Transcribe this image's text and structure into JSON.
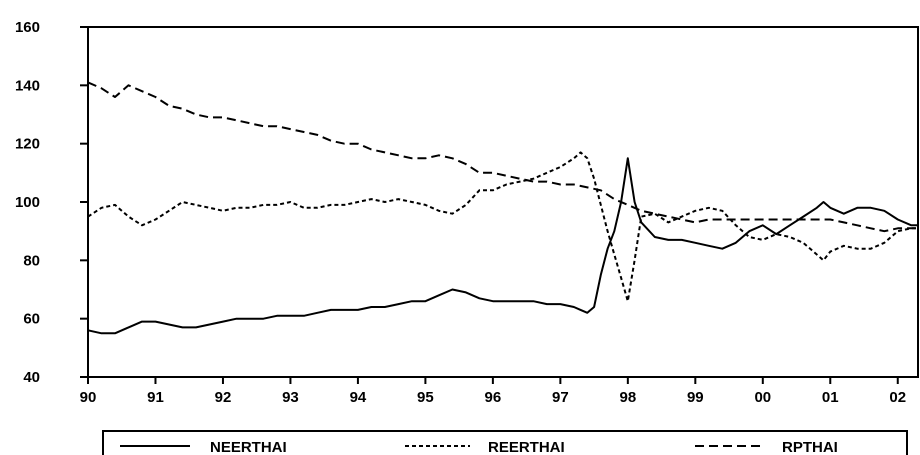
{
  "chart_data": {
    "type": "line",
    "title": "",
    "xlabel": "",
    "ylabel": "",
    "xlim": [
      1990,
      2002.3
    ],
    "ylim": [
      40,
      160
    ],
    "y_ticks": [
      40,
      60,
      80,
      100,
      120,
      140,
      160
    ],
    "x_ticks": [
      {
        "value": 1990,
        "label": "90"
      },
      {
        "value": 1991,
        "label": "91"
      },
      {
        "value": 1992,
        "label": "92"
      },
      {
        "value": 1993,
        "label": "93"
      },
      {
        "value": 1994,
        "label": "94"
      },
      {
        "value": 1995,
        "label": "95"
      },
      {
        "value": 1996,
        "label": "96"
      },
      {
        "value": 1997,
        "label": "97"
      },
      {
        "value": 1998,
        "label": "98"
      },
      {
        "value": 1999,
        "label": "99"
      },
      {
        "value": 2000,
        "label": "00"
      },
      {
        "value": 2001,
        "label": "01"
      },
      {
        "value": 2002,
        "label": "02"
      }
    ],
    "grid": false,
    "legend_position": "bottom",
    "series": [
      {
        "name": "NEERTHAI",
        "style": "solid",
        "color": "#000000",
        "points": [
          [
            1990.0,
            56
          ],
          [
            1990.2,
            55
          ],
          [
            1990.4,
            55
          ],
          [
            1990.6,
            57
          ],
          [
            1990.8,
            59
          ],
          [
            1991.0,
            59
          ],
          [
            1991.2,
            58
          ],
          [
            1991.4,
            57
          ],
          [
            1991.6,
            57
          ],
          [
            1991.8,
            58
          ],
          [
            1992.0,
            59
          ],
          [
            1992.2,
            60
          ],
          [
            1992.4,
            60
          ],
          [
            1992.6,
            60
          ],
          [
            1992.8,
            61
          ],
          [
            1993.0,
            61
          ],
          [
            1993.2,
            61
          ],
          [
            1993.4,
            62
          ],
          [
            1993.6,
            63
          ],
          [
            1993.8,
            63
          ],
          [
            1994.0,
            63
          ],
          [
            1994.2,
            64
          ],
          [
            1994.4,
            64
          ],
          [
            1994.6,
            65
          ],
          [
            1994.8,
            66
          ],
          [
            1995.0,
            66
          ],
          [
            1995.2,
            68
          ],
          [
            1995.4,
            70
          ],
          [
            1995.6,
            69
          ],
          [
            1995.8,
            67
          ],
          [
            1996.0,
            66
          ],
          [
            1996.2,
            66
          ],
          [
            1996.4,
            66
          ],
          [
            1996.6,
            66
          ],
          [
            1996.8,
            65
          ],
          [
            1997.0,
            65
          ],
          [
            1997.2,
            64
          ],
          [
            1997.3,
            63
          ],
          [
            1997.4,
            62
          ],
          [
            1997.5,
            64
          ],
          [
            1997.6,
            75
          ],
          [
            1997.7,
            84
          ],
          [
            1997.8,
            90
          ],
          [
            1997.9,
            100
          ],
          [
            1998.0,
            115
          ],
          [
            1998.1,
            100
          ],
          [
            1998.2,
            93
          ],
          [
            1998.4,
            88
          ],
          [
            1998.6,
            87
          ],
          [
            1998.8,
            87
          ],
          [
            1999.0,
            86
          ],
          [
            1999.2,
            85
          ],
          [
            1999.4,
            84
          ],
          [
            1999.6,
            86
          ],
          [
            1999.8,
            90
          ],
          [
            2000.0,
            92
          ],
          [
            2000.2,
            89
          ],
          [
            2000.4,
            92
          ],
          [
            2000.6,
            95
          ],
          [
            2000.8,
            98
          ],
          [
            2000.9,
            100
          ],
          [
            2001.0,
            98
          ],
          [
            2001.2,
            96
          ],
          [
            2001.4,
            98
          ],
          [
            2001.6,
            98
          ],
          [
            2001.8,
            97
          ],
          [
            2002.0,
            94
          ],
          [
            2002.2,
            92
          ],
          [
            2002.3,
            92
          ]
        ]
      },
      {
        "name": "REERTHAI",
        "style": "dotted",
        "color": "#000000",
        "points": [
          [
            1990.0,
            95
          ],
          [
            1990.2,
            98
          ],
          [
            1990.4,
            99
          ],
          [
            1990.6,
            95
          ],
          [
            1990.8,
            92
          ],
          [
            1991.0,
            94
          ],
          [
            1991.2,
            97
          ],
          [
            1991.4,
            100
          ],
          [
            1991.6,
            99
          ],
          [
            1991.8,
            98
          ],
          [
            1992.0,
            97
          ],
          [
            1992.2,
            98
          ],
          [
            1992.4,
            98
          ],
          [
            1992.6,
            99
          ],
          [
            1992.8,
            99
          ],
          [
            1993.0,
            100
          ],
          [
            1993.2,
            98
          ],
          [
            1993.4,
            98
          ],
          [
            1993.6,
            99
          ],
          [
            1993.8,
            99
          ],
          [
            1994.0,
            100
          ],
          [
            1994.2,
            101
          ],
          [
            1994.4,
            100
          ],
          [
            1994.6,
            101
          ],
          [
            1994.8,
            100
          ],
          [
            1995.0,
            99
          ],
          [
            1995.2,
            97
          ],
          [
            1995.4,
            96
          ],
          [
            1995.6,
            99
          ],
          [
            1995.8,
            104
          ],
          [
            1996.0,
            104
          ],
          [
            1996.2,
            106
          ],
          [
            1996.4,
            107
          ],
          [
            1996.6,
            108
          ],
          [
            1996.8,
            110
          ],
          [
            1997.0,
            112
          ],
          [
            1997.2,
            115
          ],
          [
            1997.3,
            117
          ],
          [
            1997.4,
            115
          ],
          [
            1997.5,
            108
          ],
          [
            1997.6,
            99
          ],
          [
            1997.7,
            90
          ],
          [
            1997.8,
            82
          ],
          [
            1997.9,
            74
          ],
          [
            1998.0,
            66
          ],
          [
            1998.1,
            80
          ],
          [
            1998.2,
            95
          ],
          [
            1998.4,
            96
          ],
          [
            1998.6,
            93
          ],
          [
            1998.8,
            95
          ],
          [
            1999.0,
            97
          ],
          [
            1999.2,
            98
          ],
          [
            1999.4,
            97
          ],
          [
            1999.6,
            92
          ],
          [
            1999.8,
            88
          ],
          [
            2000.0,
            87
          ],
          [
            2000.2,
            89
          ],
          [
            2000.4,
            88
          ],
          [
            2000.6,
            86
          ],
          [
            2000.8,
            82
          ],
          [
            2000.9,
            80
          ],
          [
            2001.0,
            83
          ],
          [
            2001.2,
            85
          ],
          [
            2001.4,
            84
          ],
          [
            2001.6,
            84
          ],
          [
            2001.8,
            86
          ],
          [
            2002.0,
            90
          ],
          [
            2002.2,
            91
          ],
          [
            2002.3,
            91
          ]
        ]
      },
      {
        "name": "RPTHAI",
        "style": "dashed",
        "color": "#000000",
        "points": [
          [
            1990.0,
            141
          ],
          [
            1990.2,
            139
          ],
          [
            1990.4,
            136
          ],
          [
            1990.6,
            140
          ],
          [
            1990.8,
            138
          ],
          [
            1991.0,
            136
          ],
          [
            1991.2,
            133
          ],
          [
            1991.4,
            132
          ],
          [
            1991.6,
            130
          ],
          [
            1991.8,
            129
          ],
          [
            1992.0,
            129
          ],
          [
            1992.2,
            128
          ],
          [
            1992.4,
            127
          ],
          [
            1992.6,
            126
          ],
          [
            1992.8,
            126
          ],
          [
            1993.0,
            125
          ],
          [
            1993.2,
            124
          ],
          [
            1993.4,
            123
          ],
          [
            1993.6,
            121
          ],
          [
            1993.8,
            120
          ],
          [
            1994.0,
            120
          ],
          [
            1994.2,
            118
          ],
          [
            1994.4,
            117
          ],
          [
            1994.6,
            116
          ],
          [
            1994.8,
            115
          ],
          [
            1995.0,
            115
          ],
          [
            1995.2,
            116
          ],
          [
            1995.4,
            115
          ],
          [
            1995.6,
            113
          ],
          [
            1995.8,
            110
          ],
          [
            1996.0,
            110
          ],
          [
            1996.2,
            109
          ],
          [
            1996.4,
            108
          ],
          [
            1996.6,
            107
          ],
          [
            1996.8,
            107
          ],
          [
            1997.0,
            106
          ],
          [
            1997.2,
            106
          ],
          [
            1997.4,
            105
          ],
          [
            1997.6,
            104
          ],
          [
            1997.8,
            101
          ],
          [
            1998.0,
            99
          ],
          [
            1998.2,
            97
          ],
          [
            1998.4,
            96
          ],
          [
            1998.6,
            95
          ],
          [
            1998.8,
            94
          ],
          [
            1999.0,
            93
          ],
          [
            1999.2,
            94
          ],
          [
            1999.4,
            94
          ],
          [
            1999.6,
            94
          ],
          [
            1999.8,
            94
          ],
          [
            2000.0,
            94
          ],
          [
            2000.2,
            94
          ],
          [
            2000.4,
            94
          ],
          [
            2000.6,
            94
          ],
          [
            2000.8,
            94
          ],
          [
            2001.0,
            94
          ],
          [
            2001.2,
            93
          ],
          [
            2001.4,
            92
          ],
          [
            2001.6,
            91
          ],
          [
            2001.8,
            90
          ],
          [
            2002.0,
            91
          ],
          [
            2002.2,
            91
          ],
          [
            2002.3,
            91
          ]
        ]
      }
    ]
  }
}
